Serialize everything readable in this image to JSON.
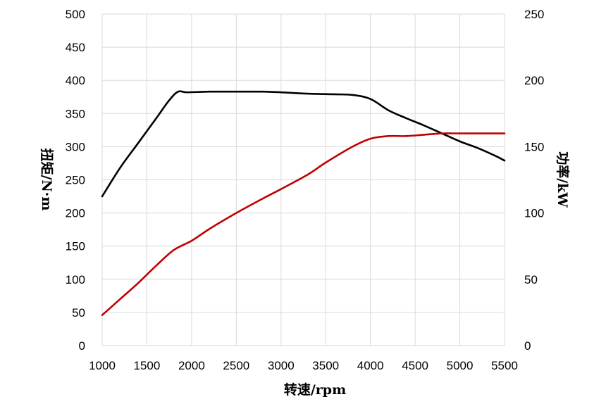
{
  "chart_data": {
    "type": "line",
    "title": "",
    "xlabel": "转速/rpm",
    "ylabel_left": "扭矩/N·m",
    "ylabel_right": "功率/kW",
    "xlim": [
      1000,
      5500
    ],
    "ylim_left": [
      0,
      500
    ],
    "ylim_right": [
      0,
      250
    ],
    "x_ticks": [
      "1000",
      "1500",
      "2000",
      "2500",
      "3000",
      "3500",
      "4000",
      "4500",
      "5000",
      "5500"
    ],
    "y_left_ticks": [
      "0",
      "50",
      "100",
      "150",
      "200",
      "250",
      "300",
      "350",
      "400",
      "450",
      "500"
    ],
    "y_right_ticks": [
      "0",
      "50",
      "100",
      "150",
      "200",
      "250"
    ],
    "grid": true,
    "legend": "none",
    "series": [
      {
        "axis": "left",
        "color": "#000000",
        "x": [
          1000,
          1200,
          1400,
          1600,
          1750,
          1850,
          1950,
          2200,
          2500,
          2800,
          3000,
          3300,
          3600,
          3800,
          4000,
          4200,
          4400,
          4600,
          4800,
          5000,
          5200,
          5400,
          5500
        ],
        "values": [
          225,
          268,
          305,
          342,
          370,
          383,
          382,
          383,
          383,
          383,
          382,
          380,
          379,
          378,
          372,
          355,
          343,
          332,
          320,
          308,
          298,
          286,
          279
        ]
      },
      {
        "axis": "right",
        "color": "#c00000",
        "x": [
          1000,
          1200,
          1400,
          1600,
          1800,
          2000,
          2200,
          2500,
          2800,
          3000,
          3300,
          3500,
          3800,
          4000,
          4200,
          4400,
          4600,
          4800,
          5000,
          5200,
          5400,
          5500
        ],
        "values": [
          23,
          35,
          47,
          60,
          72,
          79,
          88,
          100,
          111,
          118,
          129,
          138,
          150,
          156,
          158,
          158,
          159,
          160,
          160,
          160,
          160,
          160
        ]
      }
    ]
  }
}
